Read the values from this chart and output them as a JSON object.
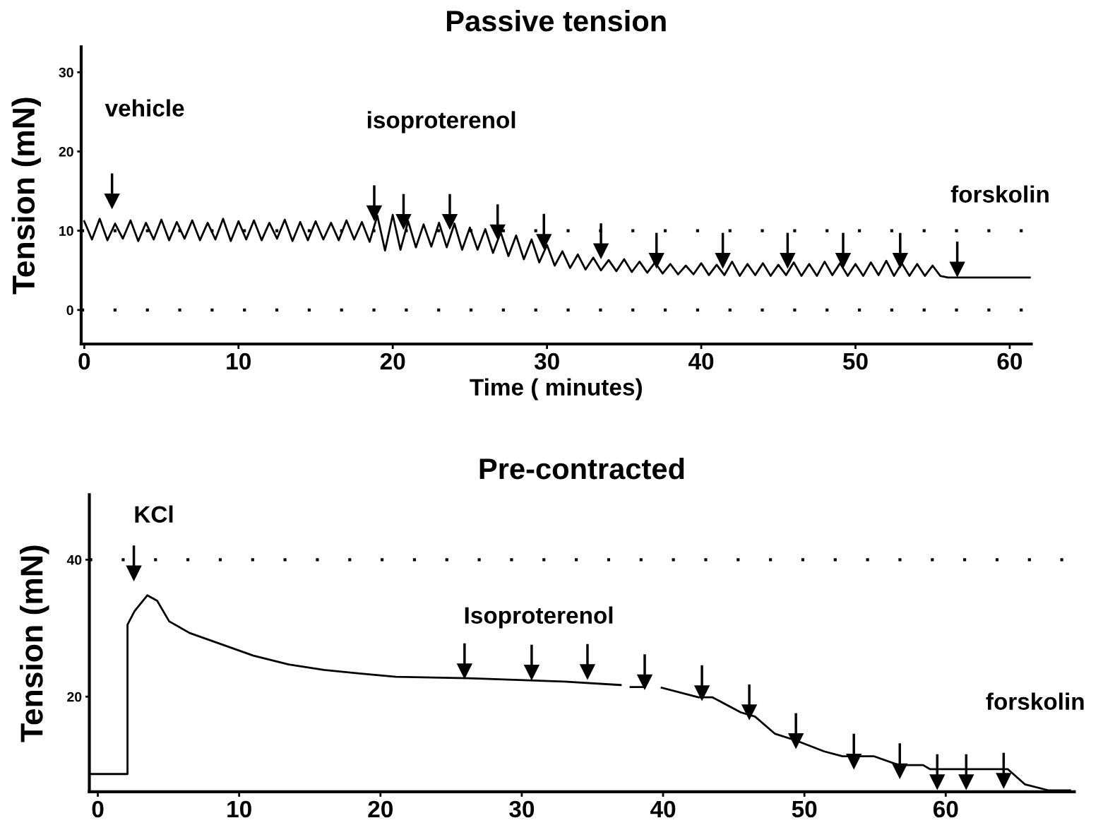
{
  "chart_data": [
    {
      "type": "line",
      "title": "Passive tension",
      "xlabel": "Time ( minutes)",
      "ylabel": "Tension (mN)",
      "xlim": [
        -0.2,
        61.4
      ],
      "ylim": [
        -4.3,
        33.2
      ],
      "xticks": [
        0,
        10,
        20,
        30,
        40,
        50,
        60
      ],
      "yticks": [
        0,
        10,
        20,
        30
      ],
      "grid": false,
      "legend": false,
      "line_style": "solid",
      "series": [
        {
          "color": "#000000",
          "marker": "none",
          "x": [
            0,
            0.5,
            1,
            1.5,
            2,
            2.5,
            3,
            3.5,
            4,
            4.5,
            5,
            5.5,
            6,
            6.5,
            7,
            7.5,
            8,
            8.5,
            9,
            9.5,
            10,
            10.5,
            11,
            11.5,
            12,
            12.5,
            13,
            13.5,
            14,
            14.5,
            15,
            15.5,
            16,
            16.5,
            17,
            17.5,
            18,
            18.5,
            19,
            19.5,
            20,
            20.5,
            21,
            21.5,
            22,
            22.5,
            23,
            23.5,
            24,
            24.5,
            25,
            25.5,
            26,
            26.5,
            27,
            27.5,
            28,
            28.5,
            29,
            29.5,
            30,
            30.5,
            31,
            31.5,
            32,
            32.5,
            33,
            33.5,
            34,
            34.5,
            35,
            35.5,
            36,
            36.5,
            37,
            37.5,
            38,
            38.5,
            39,
            39.5,
            40,
            40.5,
            41,
            41.5,
            42,
            42.5,
            43,
            43.5,
            44,
            44.5,
            45,
            45.5,
            46,
            46.5,
            47,
            47.5,
            48,
            48.5,
            49,
            49.5,
            50,
            50.5,
            51,
            51.5,
            52,
            52.5,
            53,
            53.5,
            54,
            54.5,
            55,
            55.5,
            56,
            61.3
          ],
          "values": [
            11.2,
            8.9,
            11.5,
            8.8,
            10.9,
            9.0,
            11.3,
            8.7,
            11.0,
            8.9,
            11.4,
            8.8,
            11.1,
            9.0,
            11.3,
            8.8,
            11.0,
            8.9,
            11.5,
            8.7,
            11.2,
            8.9,
            11.3,
            8.8,
            11.0,
            9.0,
            11.4,
            8.7,
            11.1,
            8.8,
            11.2,
            8.9,
            11.0,
            8.8,
            11.3,
            8.9,
            11.1,
            8.6,
            11.9,
            7.5,
            12.0,
            7.6,
            11.2,
            7.9,
            10.8,
            8.0,
            11.0,
            7.9,
            10.9,
            7.6,
            10.4,
            7.6,
            10.2,
            7.2,
            9.8,
            6.8,
            9.4,
            6.4,
            8.9,
            6.0,
            8.2,
            5.6,
            7.4,
            5.3,
            7.0,
            5.1,
            6.6,
            5.0,
            6.3,
            4.9,
            6.4,
            4.8,
            6.1,
            4.7,
            6.0,
            4.6,
            5.8,
            4.5,
            5.6,
            4.5,
            5.9,
            4.4,
            5.7,
            4.4,
            6.1,
            4.3,
            5.8,
            4.4,
            5.9,
            4.3,
            5.7,
            4.4,
            6.0,
            4.3,
            5.8,
            4.3,
            6.1,
            4.4,
            5.9,
            4.3,
            5.8,
            4.3,
            6.0,
            4.4,
            6.2,
            4.3,
            5.9,
            4.3,
            5.8,
            4.3,
            5.6,
            4.3,
            4.1,
            4.1
          ]
        },
        {
          "type": "scatter",
          "color": "#000000",
          "marker": "triangle",
          "x": [
            1.8,
            18.8,
            20.7,
            23.7,
            26.8,
            29.8,
            33.5,
            37.1,
            41.4,
            45.6,
            49.2,
            52.9,
            56.6
          ],
          "values": [
            13.7,
            12.2,
            11.1,
            11.1,
            9.8,
            8.6,
            7.4,
            6.2,
            6.2,
            6.2,
            6.2,
            6.2,
            5.1
          ]
        }
      ],
      "ref_lines": [
        {
          "axis": "y",
          "value": 0,
          "color": "#000000",
          "line_style": "dotted"
        },
        {
          "axis": "y",
          "value": 10,
          "color": "#000000",
          "line_style": "dotted"
        }
      ],
      "annotations": [
        "vehicle",
        "isoproterenol",
        "forskolin"
      ]
    },
    {
      "type": "line",
      "title": "Pre-contracted",
      "ylabel": "Tension (mN)",
      "xlim": [
        -0.6,
        69.1
      ],
      "ylim": [
        6.1,
        49.5
      ],
      "xticks": [
        0,
        10,
        20,
        30,
        40,
        50,
        60
      ],
      "yticks": [
        20,
        40
      ],
      "grid": false,
      "legend": false,
      "line_style": "solid",
      "series": [
        {
          "color": "#000000",
          "marker": "none",
          "x": [
            -0.5,
            2.1,
            2.1,
            2.6,
            3.5,
            4.2,
            5.05,
            6.5,
            8.4,
            11,
            13.5,
            16,
            18.5,
            21.1,
            26.2,
            33,
            37.0,
            37.3,
            37.7,
            38.7,
            39.2,
            39.9,
            42.5,
            43.5,
            45.5,
            46.5,
            47.9,
            49.4,
            51.4,
            52.7,
            54.9,
            56.7,
            58.4,
            58.9,
            64.4,
            65.6,
            67.3,
            68.8
          ],
          "values": [
            8.7,
            8.7,
            30.5,
            32.5,
            34.8,
            34.0,
            31.0,
            29.3,
            27.9,
            26.0,
            24.7,
            23.9,
            23.4,
            22.9,
            22.7,
            22.2,
            21.7,
            null,
            21.4,
            21.4,
            null,
            21.3,
            19.9,
            19.9,
            17.7,
            17.1,
            14.6,
            13.6,
            12.0,
            11.3,
            11.3,
            10.0,
            10.0,
            9.4,
            9.4,
            7.2,
            6.3,
            6.3
          ]
        },
        {
          "type": "scatter",
          "color": "#000000",
          "marker": "triangle",
          "x": [
            2.55,
            25.95,
            30.7,
            34.65,
            38.7,
            42.75,
            46.1,
            49.4,
            53.5,
            56.75,
            59.4,
            61.45,
            64.1
          ],
          "values": [
            38,
            23.7,
            23.5,
            23.6,
            22.1,
            20.5,
            17.7,
            13.5,
            10.5,
            9.1,
            7.5,
            7.5,
            7.7
          ]
        }
      ],
      "ref_lines": [
        {
          "axis": "y",
          "value": 40,
          "color": "#000000",
          "line_style": "dotted"
        }
      ],
      "annotations": [
        "KCl",
        "Isoproterenol",
        "forskolin"
      ]
    }
  ]
}
